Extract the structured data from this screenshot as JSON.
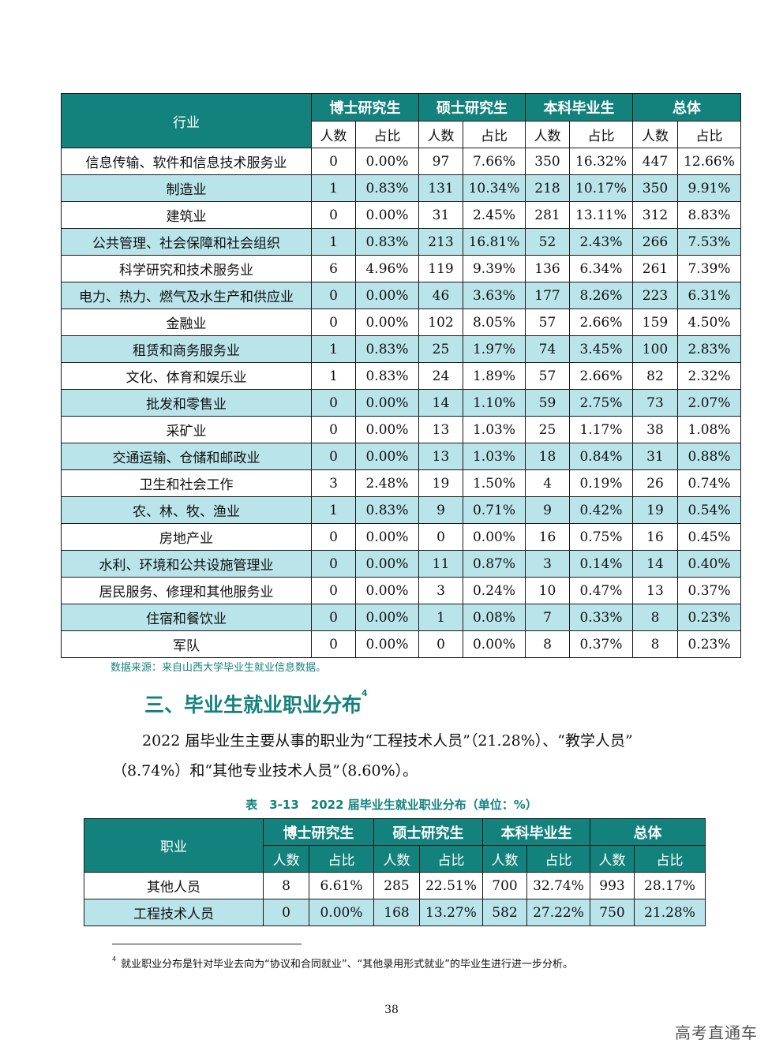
{
  "industry_table": {
    "row_header": "行业",
    "groups": [
      "博士研究生",
      "硕士研究生",
      "本科毕业生",
      "总体"
    ],
    "sub_headers": [
      "人数",
      "占比"
    ],
    "rows": [
      [
        "信息传输、软件和信息技术服务业",
        "0",
        "0.00%",
        "97",
        "7.66%",
        "350",
        "16.32%",
        "447",
        "12.66%"
      ],
      [
        "制造业",
        "1",
        "0.83%",
        "131",
        "10.34%",
        "218",
        "10.17%",
        "350",
        "9.91%"
      ],
      [
        "建筑业",
        "0",
        "0.00%",
        "31",
        "2.45%",
        "281",
        "13.11%",
        "312",
        "8.83%"
      ],
      [
        "公共管理、社会保障和社会组织",
        "1",
        "0.83%",
        "213",
        "16.81%",
        "52",
        "2.43%",
        "266",
        "7.53%"
      ],
      [
        "科学研究和技术服务业",
        "6",
        "4.96%",
        "119",
        "9.39%",
        "136",
        "6.34%",
        "261",
        "7.39%"
      ],
      [
        "电力、热力、燃气及水生产和供应业",
        "0",
        "0.00%",
        "46",
        "3.63%",
        "177",
        "8.26%",
        "223",
        "6.31%"
      ],
      [
        "金融业",
        "0",
        "0.00%",
        "102",
        "8.05%",
        "57",
        "2.66%",
        "159",
        "4.50%"
      ],
      [
        "租赁和商务服务业",
        "1",
        "0.83%",
        "25",
        "1.97%",
        "74",
        "3.45%",
        "100",
        "2.83%"
      ],
      [
        "文化、体育和娱乐业",
        "1",
        "0.83%",
        "24",
        "1.89%",
        "57",
        "2.66%",
        "82",
        "2.32%"
      ],
      [
        "批发和零售业",
        "0",
        "0.00%",
        "14",
        "1.10%",
        "59",
        "2.75%",
        "73",
        "2.07%"
      ],
      [
        "采矿业",
        "0",
        "0.00%",
        "13",
        "1.03%",
        "25",
        "1.17%",
        "38",
        "1.08%"
      ],
      [
        "交通运输、仓储和邮政业",
        "0",
        "0.00%",
        "13",
        "1.03%",
        "18",
        "0.84%",
        "31",
        "0.88%"
      ],
      [
        "卫生和社会工作",
        "3",
        "2.48%",
        "19",
        "1.50%",
        "4",
        "0.19%",
        "26",
        "0.74%"
      ],
      [
        "农、林、牧、渔业",
        "1",
        "0.83%",
        "9",
        "0.71%",
        "9",
        "0.42%",
        "19",
        "0.54%"
      ],
      [
        "房地产业",
        "0",
        "0.00%",
        "0",
        "0.00%",
        "16",
        "0.75%",
        "16",
        "0.45%"
      ],
      [
        "水利、环境和公共设施管理业",
        "0",
        "0.00%",
        "11",
        "0.87%",
        "3",
        "0.14%",
        "14",
        "0.40%"
      ],
      [
        "居民服务、修理和其他服务业",
        "0",
        "0.00%",
        "3",
        "0.24%",
        "10",
        "0.47%",
        "13",
        "0.37%"
      ],
      [
        "住宿和餐饮业",
        "0",
        "0.00%",
        "1",
        "0.08%",
        "7",
        "0.33%",
        "8",
        "0.23%"
      ],
      [
        "军队",
        "0",
        "0.00%",
        "0",
        "0.00%",
        "8",
        "0.37%",
        "8",
        "0.23%"
      ]
    ]
  },
  "source_note": "数据来源：来自山西大学毕业生就业信息数据。",
  "section": {
    "heading": "三、毕业生就业职业分布",
    "heading_sup": "4",
    "paragraph_line1": "2022 届毕业生主要从事的职业为“工程技术人员”（21.28%）、“教学人员”",
    "paragraph_line2": "（8.74%）和“其他专业技术人员”（8.60%）。"
  },
  "occupation_table": {
    "caption": "表　3-13　2022 届毕业生就业职业分布（单位：%）",
    "row_header": "职业",
    "groups": [
      "博士研究生",
      "硕士研究生",
      "本科毕业生",
      "总体"
    ],
    "sub_headers": [
      "人数",
      "占比"
    ],
    "rows": [
      [
        "其他人员",
        "8",
        "6.61%",
        "285",
        "22.51%",
        "700",
        "32.74%",
        "993",
        "28.17%"
      ],
      [
        "工程技术人员",
        "0",
        "0.00%",
        "168",
        "13.27%",
        "582",
        "27.22%",
        "750",
        "21.28%"
      ]
    ]
  },
  "footnote": {
    "marker": "4",
    "text": "就业职业分布是针对毕业去向为“协议和合同就业”、“其他录用形式就业”的毕业生进行进一步分析。"
  },
  "page_number": "38",
  "watermark": "高考直通车"
}
